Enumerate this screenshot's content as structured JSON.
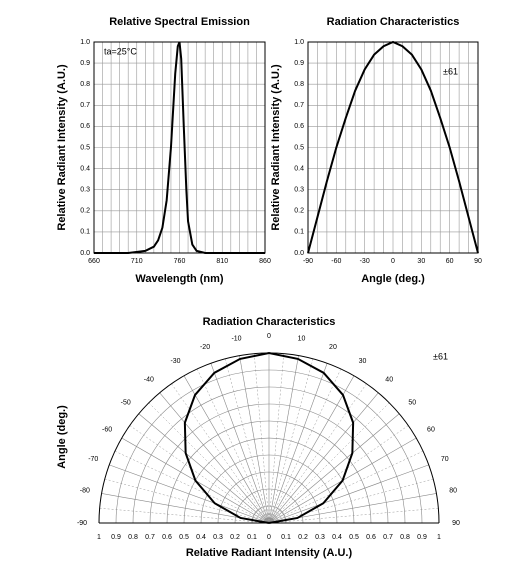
{
  "chart_data": [
    {
      "type": "line",
      "title": "Relative Spectral Emission",
      "xlabel": "Wavelength (nm)",
      "ylabel": "Relative Radiant Intensity (A.U.)",
      "annotation": "ta=25°C",
      "x": [
        660,
        700,
        720,
        730,
        735,
        740,
        745,
        750,
        755,
        758,
        760,
        762,
        765,
        768,
        770,
        775,
        780,
        790,
        800,
        860
      ],
      "values": [
        0,
        0,
        0.01,
        0.03,
        0.06,
        0.12,
        0.25,
        0.5,
        0.85,
        0.98,
        1.0,
        0.92,
        0.6,
        0.3,
        0.15,
        0.04,
        0.01,
        0,
        0,
        0
      ],
      "color": "#000000",
      "grid": true,
      "xlim": [
        660,
        860
      ],
      "xticks": [
        660,
        710,
        760,
        810,
        860
      ],
      "ylim": [
        0,
        1
      ],
      "yticks": [
        {
          "value": 0,
          "label": "0.0"
        },
        0.1,
        0.2,
        0.3,
        0.4,
        0.5,
        0.6,
        0.7,
        0.8,
        0.9,
        {
          "value": 1,
          "label": "1.0"
        }
      ]
    },
    {
      "type": "line",
      "title": "Radiation Characteristics",
      "xlabel": "Angle (deg.)",
      "ylabel": "Relative Radiant Intensity (A.U.)",
      "annotation": "±61",
      "x": [
        -90,
        -80,
        -70,
        -60,
        -50,
        -40,
        -30,
        -20,
        -10,
        0,
        10,
        20,
        30,
        40,
        50,
        60,
        70,
        80,
        90
      ],
      "values": [
        0,
        0.17,
        0.34,
        0.5,
        0.64,
        0.77,
        0.87,
        0.94,
        0.98,
        1.0,
        0.98,
        0.94,
        0.87,
        0.77,
        0.64,
        0.5,
        0.34,
        0.17,
        0
      ],
      "color": "#000000",
      "grid": true,
      "xlim": [
        -90,
        90
      ],
      "xticks": [
        -90,
        -60,
        -30,
        0,
        30,
        60,
        90
      ],
      "ylim": [
        0,
        1
      ],
      "yticks": [
        {
          "value": 0,
          "label": "0.0"
        },
        0.1,
        0.2,
        0.3,
        0.4,
        0.5,
        0.6,
        0.7,
        0.8,
        0.9,
        {
          "value": 1,
          "label": "1.0"
        }
      ]
    },
    {
      "type": "polar",
      "title": "Radiation Characteristics",
      "xlabel": "Relative Radiant Intensity (A.U.)",
      "ylabel": "Angle (deg.)",
      "annotation": "±61",
      "theta": [
        -90,
        -80,
        -70,
        -60,
        -50,
        -40,
        -30,
        -20,
        -10,
        0,
        10,
        20,
        30,
        40,
        50,
        60,
        70,
        80,
        90
      ],
      "values": [
        0,
        0.17,
        0.34,
        0.5,
        0.64,
        0.77,
        0.87,
        0.94,
        0.98,
        1.0,
        0.98,
        0.94,
        0.87,
        0.77,
        0.64,
        0.5,
        0.34,
        0.17,
        0
      ],
      "color": "#000000",
      "grid": true,
      "thetaticks": [
        -90,
        -80,
        -70,
        -60,
        -50,
        -40,
        -30,
        -20,
        -10,
        0,
        10,
        20,
        30,
        40,
        50,
        60,
        70,
        80,
        90
      ],
      "xlim": [
        -1,
        1
      ],
      "xticks": [
        {
          "value": -1,
          "label": "1"
        },
        {
          "value": -0.9,
          "label": "0.9"
        },
        {
          "value": -0.8,
          "label": "0.8"
        },
        {
          "value": -0.7,
          "label": "0.7"
        },
        {
          "value": -0.6,
          "label": "0.6"
        },
        {
          "value": -0.5,
          "label": "0.5"
        },
        {
          "value": -0.4,
          "label": "0.4"
        },
        {
          "value": -0.3,
          "label": "0.3"
        },
        {
          "value": -0.2,
          "label": "0.2"
        },
        {
          "value": -0.1,
          "label": "0.1"
        },
        0,
        0.1,
        0.2,
        0.3,
        0.4,
        0.5,
        0.6,
        0.7,
        0.8,
        0.9,
        1
      ]
    }
  ]
}
